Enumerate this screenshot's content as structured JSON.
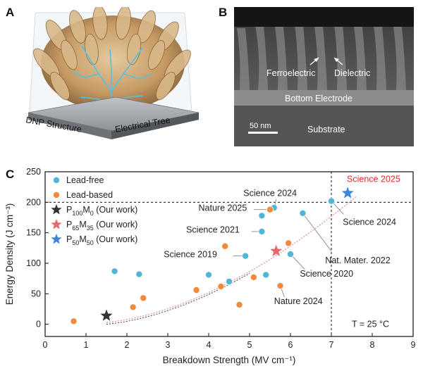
{
  "panels": {
    "a": {
      "letter": "A",
      "labels": {
        "structure": "DNP Structure",
        "tree": "Electrical Tree"
      }
    },
    "b": {
      "letter": "B",
      "labels": {
        "ferroelectric": "Ferroelectric",
        "dielectric": "Dielectric",
        "bottom_electrode": "Bottom Electrode",
        "scale": "50 nm",
        "substrate": "Substrate"
      }
    },
    "c": {
      "letter": "C"
    }
  },
  "colors": {
    "lead_free": "#4fb6d6",
    "lead_based": "#f08a3c",
    "star_p100": "#333333",
    "star_p65": "#e8696b",
    "star_p50": "#3d86e0",
    "highlight_text": "#e8262a",
    "trend": "#e88fb3"
  },
  "chart_data": {
    "type": "scatter",
    "xlabel": "Breakdown Strength (MV cm⁻¹)",
    "ylabel": "Energy Density (J cm⁻³)",
    "xlim": [
      0,
      9
    ],
    "ylim": [
      -20,
      250
    ],
    "xticks": [
      "0",
      "1",
      "2",
      "3",
      "4",
      "5",
      "6",
      "7",
      "8",
      "9"
    ],
    "yticks": [
      "0",
      "50",
      "100",
      "150",
      "200",
      "250"
    ],
    "grid": false,
    "legend_position": "top-left",
    "reference_lines": {
      "horizontal_y": 200,
      "vertical_x": 7
    },
    "temperature_note": "T = 25 °C",
    "series": [
      {
        "name": "Lead-free",
        "marker": "circle",
        "points": [
          [
            1.7,
            87
          ],
          [
            2.3,
            82
          ],
          [
            4.0,
            81
          ],
          [
            4.5,
            70
          ],
          [
            4.9,
            112
          ],
          [
            5.3,
            152
          ],
          [
            5.3,
            178
          ],
          [
            5.4,
            81
          ],
          [
            5.6,
            191
          ],
          [
            6.0,
            115
          ],
          [
            6.3,
            182
          ],
          [
            7.0,
            202
          ]
        ]
      },
      {
        "name": "Lead-based",
        "marker": "circle",
        "points": [
          [
            0.7,
            5
          ],
          [
            2.15,
            28
          ],
          [
            2.4,
            43
          ],
          [
            3.7,
            56
          ],
          [
            4.3,
            62
          ],
          [
            4.4,
            128
          ],
          [
            4.75,
            32
          ],
          [
            5.1,
            77
          ],
          [
            5.5,
            188
          ],
          [
            5.75,
            63
          ],
          [
            5.95,
            133
          ]
        ]
      },
      {
        "name": "P100M0 (Our work)",
        "marker": "star",
        "points": [
          [
            1.5,
            14
          ]
        ]
      },
      {
        "name": "P65M35 (Our work)",
        "marker": "star",
        "points": [
          [
            5.65,
            120
          ]
        ]
      },
      {
        "name": "P50M50 (Our work)",
        "marker": "star",
        "points": [
          [
            7.4,
            215
          ]
        ]
      }
    ],
    "legend": [
      {
        "text": "Lead-free"
      },
      {
        "text": "Lead-based"
      },
      {
        "main": "P",
        "sub1": "100",
        "mid": "M",
        "sub2": "0",
        "rest": " (Our work)"
      },
      {
        "main": "P",
        "sub1": "65",
        "mid": "M",
        "sub2": "35",
        "rest": " (Our work)"
      },
      {
        "main": "P",
        "sub1": "50",
        "mid": "M",
        "sub2": "50",
        "rest": " (Our work)"
      }
    ],
    "annotations": [
      "Science 2025",
      "Science 2024",
      "Nature 2025",
      "Science 2021",
      "Science 2019",
      "Science 2024",
      "Nat. Mater. 2022",
      "Science 2020",
      "Nature 2024"
    ]
  }
}
